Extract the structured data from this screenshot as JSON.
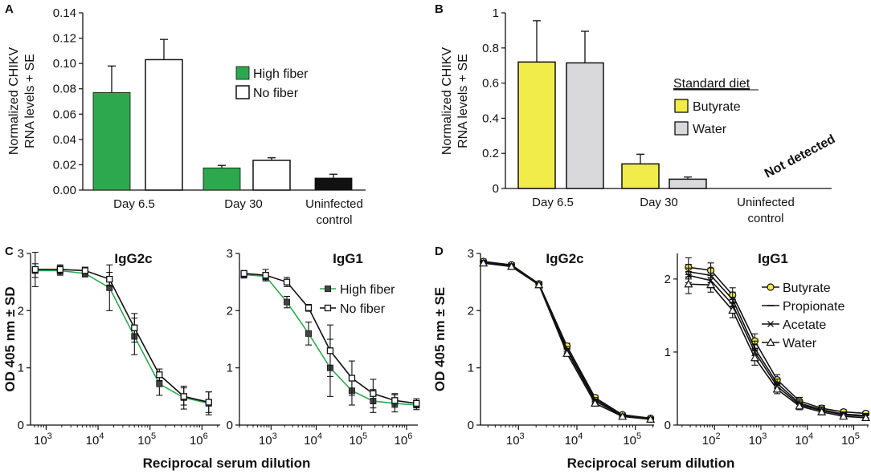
{
  "panel_labels": {
    "a": "A",
    "b": "B",
    "c": "C",
    "d": "D"
  },
  "colors": {
    "green": "#2ea84f",
    "white": "#ffffff",
    "black": "#111111",
    "yellow": "#f2ec4a",
    "gray": "#d9d9db",
    "axis": "#111111"
  },
  "chart_data": [
    {
      "id": "A",
      "type": "bar",
      "ylabel": [
        "Normalized CHIKV",
        "RNA levels + SE"
      ],
      "ylim": [
        0,
        0.14
      ],
      "yticks": [
        "0.00",
        "0.02",
        "0.04",
        "0.06",
        "0.08",
        "0.10",
        "0.12",
        "0.14"
      ],
      "categories": [
        [
          "Day 6.5"
        ],
        [
          "Day 30"
        ],
        [
          "Uninfected",
          "control"
        ]
      ],
      "series": [
        {
          "name": "High fiber",
          "color": "green",
          "values": [
            0.077,
            0.0175,
            null
          ],
          "errors": [
            0.021,
            0.002,
            null
          ]
        },
        {
          "name": "No fiber",
          "color": "white",
          "values": [
            0.103,
            0.0235,
            null
          ],
          "errors": [
            0.016,
            0.002,
            null
          ]
        },
        {
          "name": "Uninfected",
          "color": "black",
          "values": [
            null,
            null,
            0.0095
          ],
          "errors": [
            null,
            null,
            0.003
          ]
        }
      ],
      "legend": [
        "High fiber",
        "No fiber"
      ]
    },
    {
      "id": "B",
      "type": "bar",
      "ylabel": [
        "Normalized CHIKV",
        "RNA levels + SE"
      ],
      "ylim": [
        0,
        1
      ],
      "yticks": [
        "0",
        "0.2",
        "0.4",
        "0.6",
        "0.8",
        "1"
      ],
      "categories": [
        [
          "Day 6.5"
        ],
        [
          "Day 30"
        ],
        [
          "Uninfected",
          "control"
        ]
      ],
      "series": [
        {
          "name": "Butyrate",
          "color": "yellow",
          "values": [
            0.72,
            0.14,
            null
          ],
          "errors": [
            0.235,
            0.055,
            null
          ]
        },
        {
          "name": "Water",
          "color": "gray",
          "values": [
            0.715,
            0.053,
            null
          ],
          "errors": [
            0.18,
            0.012,
            null
          ]
        }
      ],
      "legend_title": "Standard diet",
      "legend": [
        "Butyrate",
        "Water"
      ],
      "annotation": "Not detected"
    },
    {
      "id": "C-IgG2c",
      "type": "line",
      "title": "IgG2c",
      "ylabel": "OD 405 nm ± SD",
      "ylim": [
        0,
        3
      ],
      "yticks": [
        "0",
        "1",
        "2",
        "3"
      ],
      "xscale": "log10",
      "xlim": [
        2.7,
        6.35
      ],
      "xticks": [
        {
          "base": "10",
          "exp": "3",
          "v": 3
        },
        {
          "base": "10",
          "exp": "4",
          "v": 4
        },
        {
          "base": "10",
          "exp": "5",
          "v": 5
        },
        {
          "base": "10",
          "exp": "6",
          "v": 6
        }
      ],
      "x": [
        2.79,
        3.27,
        3.75,
        4.22,
        4.7,
        5.18,
        5.65,
        6.13
      ],
      "series": [
        {
          "name": "High fiber",
          "color": "green",
          "marker": "square",
          "values": [
            2.7,
            2.7,
            2.65,
            2.4,
            1.55,
            0.72,
            0.48,
            0.38
          ],
          "errors": [
            0.12,
            0.08,
            0.06,
            0.4,
            0.32,
            0.2,
            0.2,
            0.2
          ]
        },
        {
          "name": "No fiber",
          "color": "black",
          "marker": "square-open",
          "values": [
            2.72,
            2.72,
            2.7,
            2.55,
            1.7,
            0.88,
            0.5,
            0.4
          ],
          "errors": [
            0.3,
            0.08,
            0.06,
            0.12,
            0.25,
            0.1,
            0.15,
            0.18
          ]
        }
      ]
    },
    {
      "id": "C-IgG1",
      "type": "line",
      "title": "IgG1",
      "ylim": [
        0,
        3
      ],
      "yticks": [
        "0",
        "1",
        "2",
        "3"
      ],
      "xscale": "log10",
      "xlim": [
        2.3,
        6.25
      ],
      "xticks": [
        {
          "base": "10",
          "exp": "3",
          "v": 3
        },
        {
          "base": "10",
          "exp": "4",
          "v": 4
        },
        {
          "base": "10",
          "exp": "5",
          "v": 5
        },
        {
          "base": "10",
          "exp": "6",
          "v": 6
        }
      ],
      "x": [
        2.4,
        2.88,
        3.35,
        3.83,
        4.31,
        4.79,
        5.26,
        5.74,
        6.22
      ],
      "series": [
        {
          "name": "High fiber",
          "color": "green",
          "marker": "square",
          "values": [
            2.63,
            2.6,
            2.15,
            1.6,
            1.0,
            0.6,
            0.42,
            0.38,
            0.35
          ],
          "errors": [
            0.06,
            0.06,
            0.1,
            0.2,
            0.5,
            0.25,
            0.2,
            0.15,
            0.08
          ]
        },
        {
          "name": "No fiber",
          "color": "black",
          "marker": "square-open",
          "values": [
            2.65,
            2.62,
            2.5,
            2.05,
            1.3,
            0.82,
            0.55,
            0.43,
            0.38
          ],
          "errors": [
            0.05,
            0.1,
            0.08,
            0.06,
            0.45,
            0.3,
            0.25,
            0.12,
            0.08
          ]
        }
      ],
      "legend": [
        "High fiber",
        "No fiber"
      ]
    },
    {
      "id": "D-IgG2c",
      "type": "line",
      "title": "IgG2c",
      "ylabel": "OD 405 nm ± SE",
      "ylim": [
        0,
        3
      ],
      "yticks": [
        "0",
        "1",
        "2",
        "3"
      ],
      "xscale": "log10",
      "xlim": [
        2.35,
        5.32
      ],
      "xticks": [
        {
          "base": "10",
          "exp": "3",
          "v": 3
        },
        {
          "base": "10",
          "exp": "4",
          "v": 4
        },
        {
          "base": "10",
          "exp": "5",
          "v": 5
        }
      ],
      "x": [
        2.4,
        2.88,
        3.35,
        3.83,
        4.31,
        4.78,
        5.26
      ],
      "series": [
        {
          "name": "Butyrate",
          "color": "yellow",
          "marker": "circle",
          "values": [
            2.86,
            2.8,
            2.47,
            1.38,
            0.48,
            0.18,
            0.12
          ],
          "errors": [
            0.04,
            0.04,
            0.04,
            0.05,
            0.04,
            0.03,
            0.02
          ]
        },
        {
          "name": "Propionate",
          "color": "black",
          "marker": "dash",
          "values": [
            2.85,
            2.79,
            2.46,
            1.33,
            0.45,
            0.17,
            0.11
          ],
          "errors": [
            0.03,
            0.03,
            0.03,
            0.04,
            0.03,
            0.02,
            0.02
          ]
        },
        {
          "name": "Acetate",
          "color": "black",
          "marker": "x",
          "values": [
            2.84,
            2.78,
            2.46,
            1.3,
            0.42,
            0.16,
            0.11
          ],
          "errors": [
            0.03,
            0.03,
            0.03,
            0.04,
            0.03,
            0.02,
            0.02
          ]
        },
        {
          "name": "Water",
          "color": "black",
          "marker": "triangle",
          "values": [
            2.83,
            2.77,
            2.45,
            1.25,
            0.38,
            0.15,
            0.1
          ],
          "errors": [
            0.03,
            0.03,
            0.03,
            0.04,
            0.03,
            0.02,
            0.02
          ]
        }
      ]
    },
    {
      "id": "D-IgG1",
      "type": "line",
      "title": "IgG1",
      "ylim": [
        0,
        2.35
      ],
      "yticks": [
        "0",
        "1",
        "2"
      ],
      "xscale": "log10",
      "xlim": [
        1.2,
        5.32
      ],
      "xticks": [
        {
          "base": "10",
          "exp": "2",
          "v": 2
        },
        {
          "base": "10",
          "exp": "3",
          "v": 3
        },
        {
          "base": "10",
          "exp": "4",
          "v": 4
        },
        {
          "base": "10",
          "exp": "5",
          "v": 5
        }
      ],
      "x": [
        1.44,
        1.92,
        2.39,
        2.87,
        3.35,
        3.83,
        4.31,
        4.78,
        5.26
      ],
      "series": [
        {
          "name": "Butyrate",
          "color": "yellow",
          "marker": "circle",
          "values": [
            2.16,
            2.12,
            1.78,
            1.15,
            0.62,
            0.33,
            0.23,
            0.18,
            0.16
          ],
          "errors": [
            0.13,
            0.1,
            0.1,
            0.1,
            0.07,
            0.05,
            0.04,
            0.03,
            0.03
          ]
        },
        {
          "name": "Propionate",
          "color": "black",
          "marker": "dash",
          "values": [
            2.1,
            2.05,
            1.72,
            1.05,
            0.57,
            0.3,
            0.21,
            0.15,
            0.13
          ],
          "errors": [
            0.1,
            0.1,
            0.1,
            0.1,
            0.06,
            0.05,
            0.04,
            0.03,
            0.03
          ]
        },
        {
          "name": "Acetate",
          "color": "black",
          "marker": "x",
          "values": [
            2.05,
            1.98,
            1.65,
            1.0,
            0.53,
            0.28,
            0.2,
            0.14,
            0.12
          ],
          "errors": [
            0.1,
            0.1,
            0.1,
            0.1,
            0.06,
            0.05,
            0.04,
            0.03,
            0.03
          ]
        },
        {
          "name": "Water",
          "color": "black",
          "marker": "triangle",
          "values": [
            1.93,
            1.92,
            1.57,
            0.92,
            0.49,
            0.26,
            0.18,
            0.12,
            0.1
          ],
          "errors": [
            0.13,
            0.1,
            0.1,
            0.1,
            0.06,
            0.05,
            0.04,
            0.03,
            0.03
          ]
        }
      ],
      "legend": [
        "Butyrate",
        "Propionate",
        "Acetate",
        "Water"
      ]
    }
  ],
  "xlabels": {
    "c": "Reciprocal serum dilution",
    "d": "Reciprocal serum dilution"
  }
}
